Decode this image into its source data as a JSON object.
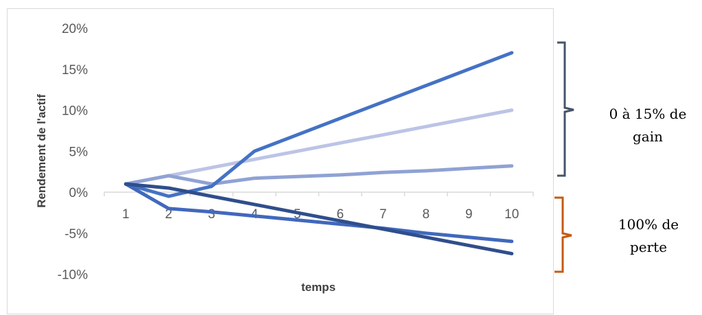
{
  "chart_data": {
    "type": "line",
    "x": [
      1,
      2,
      3,
      4,
      5,
      6,
      7,
      8,
      9,
      10
    ],
    "xlabel": "temps",
    "ylabel": "Rendement de l'actif",
    "ylim": [
      -10,
      20
    ],
    "yticks": [
      "20%",
      "15%",
      "10%",
      "5%",
      "0%",
      "-5%",
      "-10%"
    ],
    "ytick_values": [
      20,
      15,
      10,
      5,
      0,
      -5,
      -10
    ],
    "xticks": [
      "1",
      "2",
      "3",
      "4",
      "5",
      "6",
      "7",
      "8",
      "9",
      "10"
    ],
    "grid": false,
    "series": [
      {
        "color": "#bcc4e6",
        "values": [
          1,
          2,
          3,
          4,
          5,
          6,
          7,
          8,
          9,
          10
        ]
      },
      {
        "color": "#8fa2d4",
        "values": [
          1,
          2,
          1,
          1.7,
          1.9,
          2.1,
          2.4,
          2.6,
          2.9,
          3.2
        ]
      },
      {
        "color": "#4472c4",
        "values": [
          1,
          -0.5,
          0.7,
          5,
          7,
          9,
          11,
          13,
          15,
          17
        ]
      },
      {
        "color": "#4168bd",
        "values": [
          1,
          -2,
          -2.4,
          -2.9,
          -3.4,
          -3.9,
          -4.4,
          -5,
          -5.5,
          -6
        ]
      },
      {
        "color": "#2f4e8c",
        "values": [
          1,
          0.5,
          -0.5,
          -1.5,
          -2.5,
          -3.5,
          -4.5,
          -5.5,
          -6.5,
          -7.5
        ]
      }
    ]
  },
  "annotations": {
    "gain_line1": "0 à 15% de",
    "gain_line2": "gain",
    "loss_line1": "100% de",
    "loss_line2": "perte",
    "gain_bracket_color": "#44546a",
    "loss_bracket_color": "#c55a11"
  }
}
